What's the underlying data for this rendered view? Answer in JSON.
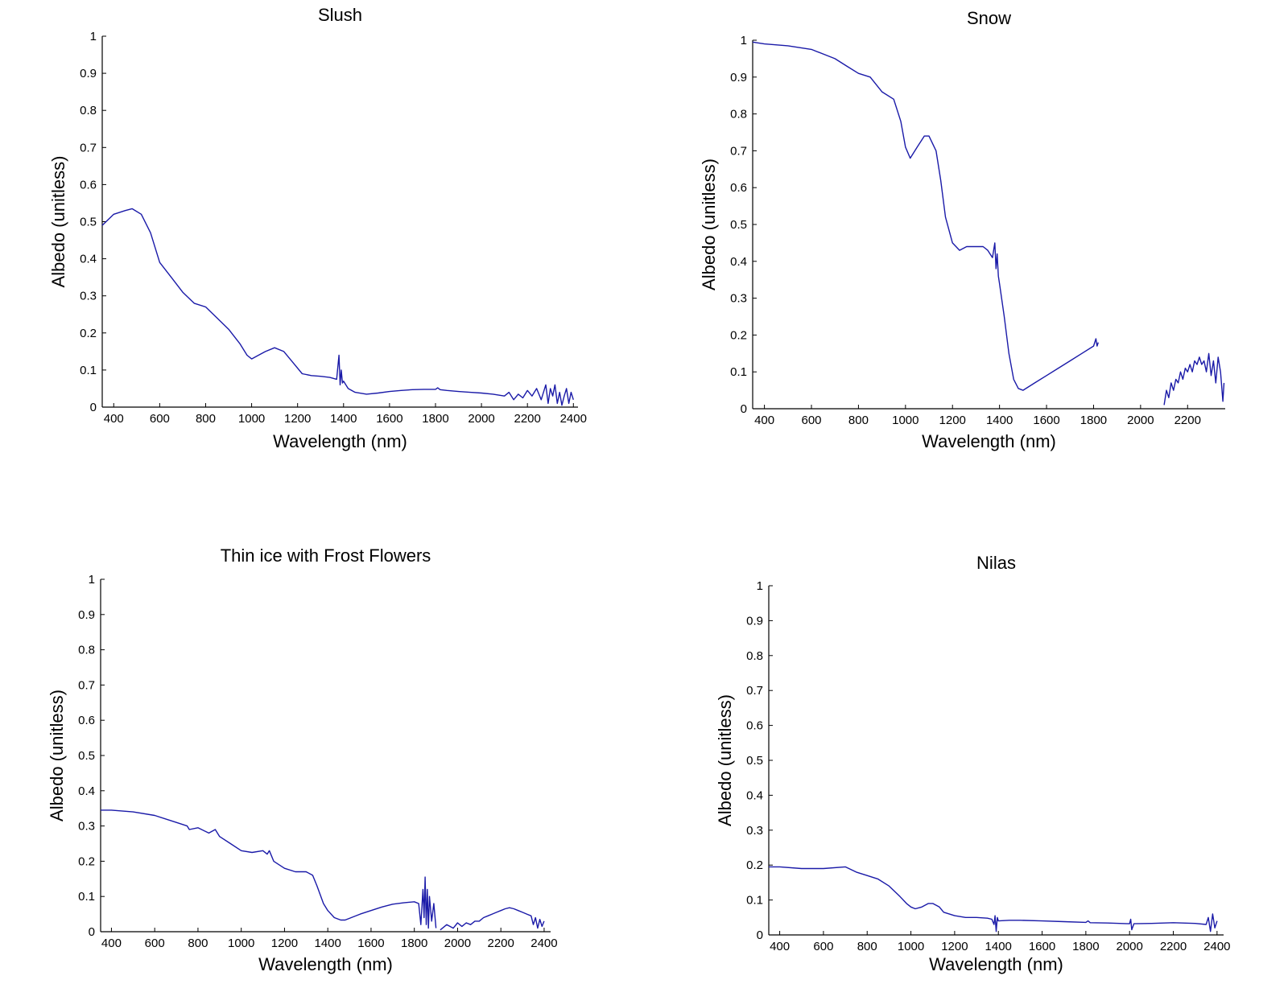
{
  "colors": {
    "series": "#1a1aa8",
    "axis": "#000000",
    "background": "#ffffff"
  },
  "chart_data": [
    {
      "type": "line",
      "title": "Slush",
      "xlabel": "Wavelength (nm)",
      "ylabel": "Albedo (unitless)",
      "xlim": [
        350,
        2420
      ],
      "ylim": [
        0,
        1
      ],
      "xticks": [
        400,
        600,
        800,
        1000,
        1200,
        1400,
        1600,
        1800,
        2000,
        2200,
        2400
      ],
      "yticks": [
        0,
        0.1,
        0.2,
        0.3,
        0.4,
        0.5,
        0.6,
        0.7,
        0.8,
        0.9,
        1
      ],
      "ytick_labels": [
        "0",
        "0.1",
        "0.2",
        "0.3",
        "0.4",
        "0.5",
        "0.6",
        "0.7",
        "0.8",
        "0.9",
        "1"
      ],
      "grid": false,
      "series": [
        {
          "segments": [
            {
              "x": [
                350,
                400,
                450,
                480,
                520,
                560,
                600,
                650,
                700,
                750,
                800,
                850,
                900,
                950,
                980,
                1000,
                1030,
                1060,
                1100,
                1140,
                1180,
                1220,
                1260,
                1300,
                1340,
                1370,
                1380,
                1385,
                1390,
                1395,
                1400,
                1420,
                1450,
                1500,
                1550,
                1600,
                1650,
                1700,
                1750,
                1800,
                1810,
                1820,
                1850,
                1900,
                1950,
                2000,
                2050,
                2100,
                2120,
                2140,
                2160,
                2180,
                2200,
                2220,
                2240,
                2260,
                2280,
                2290,
                2300,
                2310,
                2320,
                2330,
                2340,
                2350,
                2360,
                2370,
                2380,
                2390,
                2400
              ],
              "y": [
                0.49,
                0.52,
                0.53,
                0.535,
                0.52,
                0.47,
                0.39,
                0.35,
                0.31,
                0.28,
                0.27,
                0.24,
                0.21,
                0.17,
                0.14,
                0.13,
                0.14,
                0.15,
                0.16,
                0.15,
                0.12,
                0.09,
                0.085,
                0.083,
                0.08,
                0.075,
                0.14,
                0.06,
                0.1,
                0.065,
                0.07,
                0.05,
                0.04,
                0.035,
                0.038,
                0.042,
                0.045,
                0.047,
                0.048,
                0.048,
                0.052,
                0.047,
                0.045,
                0.042,
                0.04,
                0.038,
                0.035,
                0.03,
                0.04,
                0.02,
                0.035,
                0.025,
                0.045,
                0.03,
                0.05,
                0.02,
                0.06,
                0.01,
                0.05,
                0.03,
                0.06,
                0.01,
                0.04,
                0.005,
                0.03,
                0.05,
                0.01,
                0.04,
                0.02
              ]
            }
          ]
        }
      ]
    },
    {
      "type": "line",
      "title": "Snow",
      "xlabel": "Wavelength (nm)",
      "ylabel": "Albedo (unitless)",
      "xlim": [
        350,
        2360
      ],
      "ylim": [
        0,
        1
      ],
      "xticks": [
        400,
        600,
        800,
        1000,
        1200,
        1400,
        1600,
        1800,
        2000,
        2200
      ],
      "yticks": [
        0,
        0.1,
        0.2,
        0.3,
        0.4,
        0.5,
        0.6,
        0.7,
        0.8,
        0.9,
        1
      ],
      "ytick_labels": [
        "0",
        "0.1",
        "0.2",
        "0.3",
        "0.4",
        "0.5",
        "0.6",
        "0.7",
        "0.8",
        "0.9",
        "1"
      ],
      "grid": false,
      "series": [
        {
          "segments": [
            {
              "x": [
                350,
                400,
                500,
                600,
                700,
                750,
                800,
                850,
                900,
                950,
                980,
                1000,
                1020,
                1050,
                1080,
                1100,
                1130,
                1150,
                1170,
                1200,
                1230,
                1260,
                1300,
                1330,
                1350,
                1370,
                1380,
                1385,
                1390,
                1395,
                1400,
                1420,
                1440,
                1460,
                1480,
                1500,
                1550,
                1600,
                1650,
                1700,
                1750,
                1800,
                1810,
                1815,
                1820
              ],
              "y": [
                0.995,
                0.99,
                0.985,
                0.975,
                0.95,
                0.93,
                0.91,
                0.9,
                0.86,
                0.84,
                0.78,
                0.71,
                0.68,
                0.71,
                0.74,
                0.74,
                0.7,
                0.62,
                0.52,
                0.45,
                0.43,
                0.44,
                0.44,
                0.44,
                0.43,
                0.41,
                0.45,
                0.38,
                0.42,
                0.36,
                0.34,
                0.25,
                0.15,
                0.08,
                0.055,
                0.05,
                0.07,
                0.09,
                0.11,
                0.13,
                0.15,
                0.17,
                0.19,
                0.17,
                0.18
              ]
            },
            {
              "x": [
                2100,
                2110,
                2120,
                2130,
                2140,
                2150,
                2160,
                2170,
                2180,
                2190,
                2200,
                2210,
                2220,
                2230,
                2240,
                2250,
                2260,
                2270,
                2280,
                2290,
                2300,
                2310,
                2320,
                2330,
                2340,
                2350,
                2355
              ],
              "y": [
                0.01,
                0.05,
                0.03,
                0.07,
                0.05,
                0.08,
                0.07,
                0.1,
                0.08,
                0.11,
                0.1,
                0.12,
                0.1,
                0.13,
                0.12,
                0.14,
                0.12,
                0.13,
                0.1,
                0.15,
                0.09,
                0.13,
                0.07,
                0.14,
                0.1,
                0.02,
                0.07
              ]
            }
          ]
        }
      ]
    },
    {
      "type": "line",
      "title": "Thin ice with Frost Flowers",
      "xlabel": "Wavelength (nm)",
      "ylabel": "Albedo (unitless)",
      "xlim": [
        350,
        2430
      ],
      "ylim": [
        0,
        1
      ],
      "xticks": [
        400,
        600,
        800,
        1000,
        1200,
        1400,
        1600,
        1800,
        2000,
        2200,
        2400
      ],
      "yticks": [
        0,
        0.1,
        0.2,
        0.3,
        0.4,
        0.5,
        0.6,
        0.7,
        0.8,
        0.9,
        1
      ],
      "ytick_labels": [
        "0",
        "0.1",
        "0.2",
        "0.3",
        "0.4",
        "0.5",
        "0.6",
        "0.7",
        "0.8",
        "0.9",
        "1"
      ],
      "grid": false,
      "series": [
        {
          "segments": [
            {
              "x": [
                350,
                400,
                500,
                600,
                700,
                750,
                760,
                800,
                850,
                880,
                900,
                950,
                1000,
                1050,
                1100,
                1120,
                1130,
                1150,
                1200,
                1250,
                1300,
                1330,
                1350,
                1380,
                1400,
                1430,
                1460,
                1480,
                1500,
                1550,
                1600,
                1650,
                1700,
                1750,
                1800,
                1820,
                1830,
                1840,
                1845,
                1850,
                1855,
                1860,
                1865,
                1870,
                1880,
                1890,
                1900
              ],
              "y": [
                0.345,
                0.345,
                0.34,
                0.33,
                0.31,
                0.3,
                0.29,
                0.295,
                0.28,
                0.29,
                0.27,
                0.25,
                0.23,
                0.225,
                0.23,
                0.22,
                0.23,
                0.2,
                0.18,
                0.17,
                0.17,
                0.16,
                0.13,
                0.08,
                0.06,
                0.04,
                0.033,
                0.033,
                0.038,
                0.05,
                0.06,
                0.07,
                0.078,
                0.082,
                0.085,
                0.08,
                0.02,
                0.12,
                0.04,
                0.155,
                0.02,
                0.12,
                0.01,
                0.1,
                0.03,
                0.08,
                0.01
              ]
            },
            {
              "x": [
                1920,
                1950,
                1980,
                2000,
                2020,
                2040,
                2060,
                2080,
                2100,
                2120,
                2140,
                2160,
                2180,
                2200,
                2220,
                2240,
                2260,
                2280,
                2300,
                2320,
                2340,
                2350,
                2360,
                2370,
                2380,
                2390,
                2400
              ],
              "y": [
                0.005,
                0.02,
                0.01,
                0.025,
                0.015,
                0.025,
                0.02,
                0.03,
                0.03,
                0.04,
                0.045,
                0.05,
                0.055,
                0.06,
                0.065,
                0.068,
                0.065,
                0.06,
                0.055,
                0.05,
                0.045,
                0.02,
                0.04,
                0.01,
                0.035,
                0.015,
                0.03
              ]
            }
          ]
        }
      ]
    },
    {
      "type": "line",
      "title": "Nilas",
      "xlabel": "Wavelength (nm)",
      "ylabel": "Albedo (unitless)",
      "xlim": [
        350,
        2430
      ],
      "ylim": [
        0,
        1
      ],
      "xticks": [
        400,
        600,
        800,
        1000,
        1200,
        1400,
        1600,
        1800,
        2000,
        2200,
        2400
      ],
      "yticks": [
        0,
        0.1,
        0.2,
        0.3,
        0.4,
        0.5,
        0.6,
        0.7,
        0.8,
        0.9,
        1
      ],
      "ytick_labels": [
        "0",
        "0.1",
        "0.2",
        "0.3",
        "0.4",
        "0.5",
        "0.6",
        "0.7",
        "0.8",
        "0.9",
        "1"
      ],
      "grid": false,
      "series": [
        {
          "segments": [
            {
              "x": [
                350,
                400,
                500,
                600,
                700,
                750,
                800,
                850,
                900,
                950,
                980,
                1000,
                1020,
                1050,
                1080,
                1100,
                1130,
                1150,
                1200,
                1250,
                1300,
                1350,
                1370,
                1380,
                1385,
                1390,
                1395,
                1400,
                1450,
                1500,
                1600,
                1700,
                1800,
                1810,
                1820,
                1900,
                2000,
                2005,
                2010,
                2020,
                2100,
                2200,
                2300,
                2350,
                2360,
                2370,
                2380,
                2390,
                2400
              ],
              "y": [
                0.195,
                0.195,
                0.19,
                0.19,
                0.195,
                0.18,
                0.17,
                0.16,
                0.14,
                0.11,
                0.09,
                0.08,
                0.075,
                0.08,
                0.09,
                0.09,
                0.08,
                0.065,
                0.055,
                0.05,
                0.05,
                0.048,
                0.045,
                0.03,
                0.055,
                0.01,
                0.05,
                0.04,
                0.042,
                0.042,
                0.04,
                0.038,
                0.036,
                0.04,
                0.035,
                0.034,
                0.032,
                0.045,
                0.015,
                0.032,
                0.033,
                0.035,
                0.033,
                0.03,
                0.05,
                0.01,
                0.06,
                0.02,
                0.04
              ]
            }
          ]
        }
      ]
    }
  ]
}
